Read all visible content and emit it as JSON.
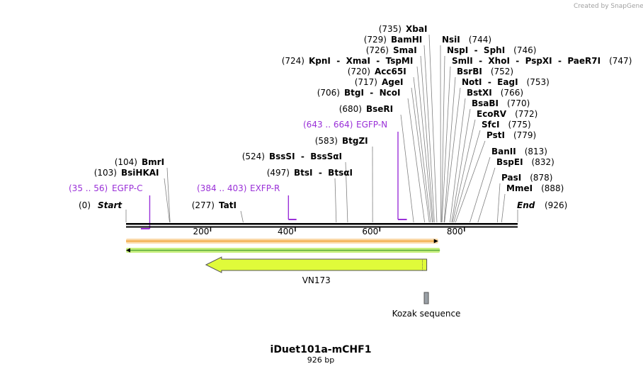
{
  "credit": "Created by SnapGene",
  "sequence": {
    "name": "iDuet101a-mCHF1",
    "length_text": "926 bp"
  },
  "ruler": {
    "ticks": [
      {
        "label": "200",
        "bp": 200
      },
      {
        "label": "400",
        "bp": 400
      },
      {
        "label": "600",
        "bp": 600
      },
      {
        "label": "800",
        "bp": 800
      }
    ]
  },
  "ends": [
    {
      "pos": "(0)",
      "name": "Start",
      "bp": 0,
      "side": "left"
    },
    {
      "pos": "(926)",
      "name": "End",
      "bp": 926,
      "side": "right"
    }
  ],
  "sites": [
    {
      "pos": "(104)",
      "name": "BmrI",
      "bp": 104
    },
    {
      "pos": "(103)",
      "name": "BsiHKAI",
      "bp": 103
    },
    {
      "pos": "(277)",
      "name": "TatI",
      "bp": 277
    },
    {
      "pos": "(524)",
      "name": "BssSI  -  BssSαI",
      "bp": 524
    },
    {
      "pos": "(497)",
      "name": "BtsI  -  BtsαI",
      "bp": 497
    },
    {
      "pos": "(583)",
      "name": "BtgZI",
      "bp": 583
    },
    {
      "pos": "(680)",
      "name": "BseRI",
      "bp": 680
    },
    {
      "pos": "(706)",
      "name": "BtgI  -  NcoI",
      "bp": 706
    },
    {
      "pos": "(717)",
      "name": "AgeI",
      "bp": 717
    },
    {
      "pos": "(720)",
      "name": "Acc65I",
      "bp": 720
    },
    {
      "pos": "(724)",
      "name": "KpnI  -  XmaI  -  TspMI",
      "bp": 724
    },
    {
      "pos": "(726)",
      "name": "SmaI",
      "bp": 726
    },
    {
      "pos": "(729)",
      "name": "BamHI",
      "bp": 729
    },
    {
      "pos": "(735)",
      "name": "XbaI",
      "bp": 735
    },
    {
      "pos": "(744)",
      "name": "NsiI",
      "bp": 744
    },
    {
      "pos": "(746)",
      "name": "NspI  -  SphI",
      "bp": 746
    },
    {
      "pos": "(747)",
      "name": "SmlI  -  XhoI  -  PspXI  -  PaeR7I",
      "bp": 747
    },
    {
      "pos": "(752)",
      "name": "BsrBI",
      "bp": 752
    },
    {
      "pos": "(753)",
      "name": "NotI  -  EagI",
      "bp": 753
    },
    {
      "pos": "(766)",
      "name": "BstXI",
      "bp": 766
    },
    {
      "pos": "(770)",
      "name": "BsaBI",
      "bp": 770
    },
    {
      "pos": "(772)",
      "name": "EcoRV",
      "bp": 772
    },
    {
      "pos": "(775)",
      "name": "SfcI",
      "bp": 775
    },
    {
      "pos": "(779)",
      "name": "PstI",
      "bp": 779
    },
    {
      "pos": "(813)",
      "name": "BanII",
      "bp": 813
    },
    {
      "pos": "(832)",
      "name": "BspEI",
      "bp": 832
    },
    {
      "pos": "(878)",
      "name": "PasI",
      "bp": 878
    },
    {
      "pos": "(888)",
      "name": "MmeI",
      "bp": 888
    }
  ],
  "primers": [
    {
      "range": "(35 .. 56)",
      "name": "EGFP-C",
      "start": 35,
      "end": 56,
      "strand": "reverse"
    },
    {
      "range": "(384 .. 403)",
      "name": "EXFP-R",
      "start": 384,
      "end": 403,
      "strand": "forward"
    },
    {
      "range": "(643 .. 664)",
      "name": "EGFP-N",
      "start": 643,
      "end": 664,
      "strand": "forward"
    }
  ],
  "orf_forward": {
    "start": 0,
    "end": 738,
    "color": "#f0a030"
  },
  "orf_reverse": {
    "start": 0,
    "end": 742,
    "color": "#58a838"
  },
  "features": [
    {
      "name": "VN173",
      "start": 189,
      "end": 711,
      "direction": "left",
      "color": "#e0fb3a"
    },
    {
      "name": "Kozak sequence",
      "start": 705,
      "end": 715,
      "color": "#9aa0a6"
    }
  ]
}
